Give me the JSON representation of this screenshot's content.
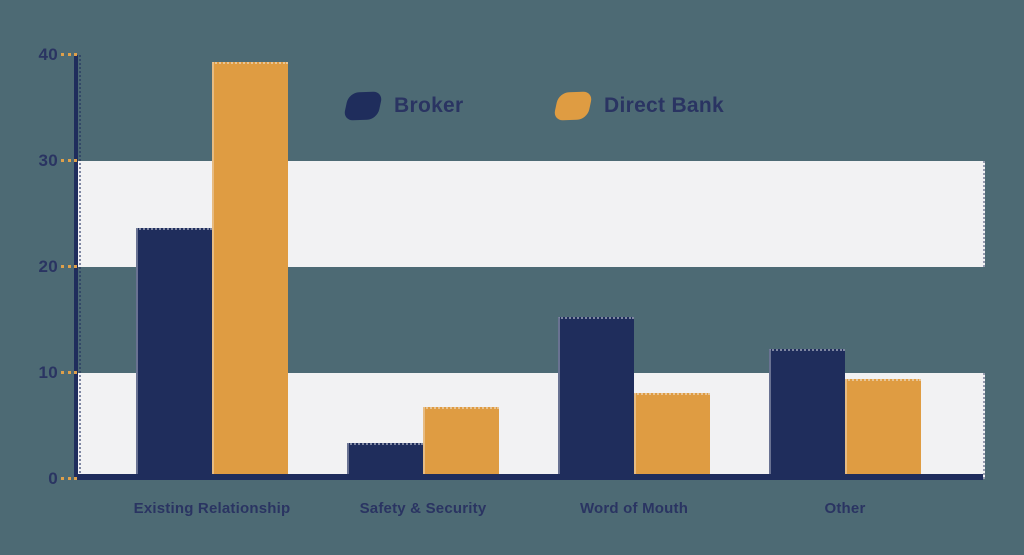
{
  "chart_data": {
    "type": "bar",
    "title": "",
    "xlabel": "",
    "ylabel": "",
    "categories": [
      "Existing Relationship",
      "Safety & Security",
      "Word of Mouth",
      "Other"
    ],
    "series": [
      {
        "name": "Broker",
        "color": "#1f2d5c",
        "values": [
          23.7,
          3.4,
          15.3,
          12.3
        ]
      },
      {
        "name": "Direct Bank",
        "color": "#df9c42",
        "values": [
          39.3,
          6.8,
          8.1,
          9.4
        ]
      }
    ],
    "ylim": [
      0,
      40
    ],
    "yticks": [
      0,
      10,
      20,
      30,
      40
    ],
    "grid": "alternating horizontal highlight bands",
    "highlight_bands": [
      [
        20,
        30
      ],
      [
        0,
        10
      ]
    ],
    "legend_position": "top-center",
    "colors": {
      "background": "#4d6a74",
      "band": "#f2f2f3",
      "axis": "#1f2d5c",
      "tick_dash": "#dfa04a",
      "text": "#2a3462"
    }
  }
}
